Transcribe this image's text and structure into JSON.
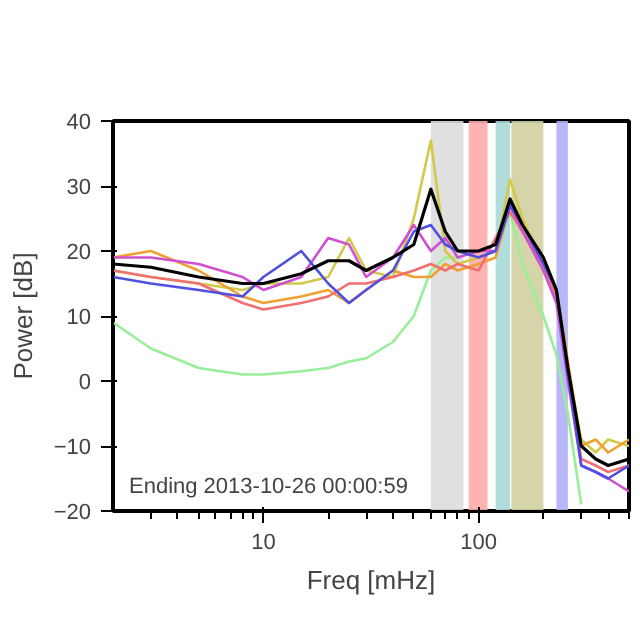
{
  "chart_data": {
    "type": "line",
    "xlabel": "Freq [mHz]",
    "ylabel": "Power [dB]",
    "log": "x",
    "xlim": [
      2,
      500
    ],
    "ylim": [
      -20,
      40
    ],
    "xticks": [
      {
        "value": 3,
        "label": null
      },
      {
        "value": 4,
        "label": null
      },
      {
        "value": 5,
        "label": null
      },
      {
        "value": 6,
        "label": null
      },
      {
        "value": 7,
        "label": null
      },
      {
        "value": 8,
        "label": null
      },
      {
        "value": 9,
        "label": null
      },
      10,
      {
        "value": 20,
        "label": null
      },
      {
        "value": 30,
        "label": null
      },
      {
        "value": 40,
        "label": null
      },
      {
        "value": 50,
        "label": null
      },
      {
        "value": 60,
        "label": null
      },
      {
        "value": 70,
        "label": null
      },
      {
        "value": 80,
        "label": null
      },
      {
        "value": 90,
        "label": null
      },
      100,
      {
        "value": 200,
        "label": null
      },
      {
        "value": 300,
        "label": null
      },
      {
        "value": 400,
        "label": null
      },
      {
        "value": 500,
        "label": null
      }
    ],
    "yticks": [
      -20,
      -10,
      0,
      10,
      20,
      30,
      40
    ],
    "grid": false,
    "x": [
      2,
      3,
      5,
      8,
      10,
      15,
      20,
      25,
      30,
      40,
      50,
      60,
      70,
      80,
      100,
      120,
      140,
      160,
      200,
      230,
      260,
      300,
      350,
      400,
      500
    ],
    "series": [
      {
        "color": "#99ee99",
        "values": [
          9,
          5,
          2,
          1,
          1,
          1.5,
          2,
          3,
          3.5,
          6,
          10,
          17,
          19,
          19,
          null,
          20,
          26,
          18,
          10,
          4,
          -5,
          -19,
          null,
          null,
          null
        ]
      },
      {
        "color": "#d4c84a",
        "values": [
          17,
          16,
          15,
          14,
          15,
          15,
          16,
          22,
          17,
          16,
          25,
          37,
          20,
          18,
          19,
          20,
          31,
          25,
          18,
          13,
          2,
          -9,
          -11,
          -9,
          -10
        ]
      },
      {
        "color": "#f0a030",
        "values": [
          19,
          20,
          17,
          13,
          12,
          13,
          14,
          12,
          14,
          17,
          16,
          16,
          18,
          17,
          18,
          19,
          27,
          24,
          19,
          14,
          3,
          -10,
          -9,
          -11,
          -9
        ]
      },
      {
        "color": "#f07070",
        "values": [
          17,
          16,
          15,
          12,
          11,
          12,
          13,
          15,
          15,
          16,
          17,
          18,
          17,
          18,
          17,
          22,
          26,
          23,
          18,
          13,
          1,
          -12,
          -13,
          -14,
          -13
        ]
      },
      {
        "color": "#d050d0",
        "values": [
          19,
          19,
          18,
          16,
          14,
          16,
          22,
          21,
          16,
          19,
          24,
          20,
          22,
          19,
          20,
          20,
          27,
          23,
          17,
          12,
          0,
          -13,
          -14,
          -15,
          -17
        ]
      },
      {
        "color": "#5050e0",
        "values": [
          16,
          15,
          14,
          13,
          16,
          20,
          15,
          12,
          14,
          17,
          23,
          24,
          21,
          20,
          19,
          20,
          27,
          24,
          18,
          14,
          1,
          -13,
          -14,
          -15,
          -13
        ]
      },
      {
        "color": "#000000",
        "values": [
          18,
          17.5,
          16,
          15,
          15,
          16.5,
          18.5,
          18.5,
          17,
          19,
          21,
          29.5,
          23,
          20,
          20,
          21,
          28,
          24,
          19,
          14,
          2,
          -10,
          -12,
          -13,
          -12
        ]
      }
    ],
    "bands": [
      {
        "axis": "x",
        "from": 60,
        "to": 85,
        "color": "#dddddd"
      },
      {
        "axis": "x",
        "from": 90,
        "to": 110,
        "color": "#ffaaaa"
      },
      {
        "axis": "x",
        "from": 120,
        "to": 140,
        "color": "#a8d8d8"
      },
      {
        "axis": "x",
        "from": 142,
        "to": 200,
        "color": "#d0d0a0"
      },
      {
        "axis": "x",
        "from": 230,
        "to": 260,
        "color": "#b0b0f8"
      }
    ],
    "annotations": [
      "Ending 2013-10-26 00:00:59"
    ]
  }
}
